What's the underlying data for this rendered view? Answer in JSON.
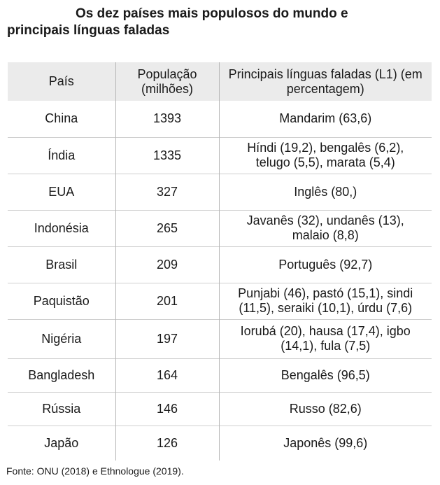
{
  "title": {
    "line1": "Os dez países mais populosos do mundo e",
    "line2": "principais línguas faladas"
  },
  "table": {
    "headers": {
      "country": "País",
      "population": "População (milhões)",
      "languages": "Principais línguas faladas (L1) (em percentagem)"
    },
    "rows": [
      {
        "country": "China",
        "population": "1393",
        "languages": "Mandarim (63,6)"
      },
      {
        "country": "Índia",
        "population": "1335",
        "languages": "Híndi (19,2), bengalês (6,2), telugo (5,5), marata (5,4)"
      },
      {
        "country": "EUA",
        "population": "327",
        "languages": "Inglês (80,)"
      },
      {
        "country": "Indonésia",
        "population": "265",
        "languages": "Javanês (32), undanês (13), malaio (8,8)"
      },
      {
        "country": "Brasil",
        "population": "209",
        "languages": "Português (92,7)"
      },
      {
        "country": "Paquistão",
        "population": "201",
        "languages": "Punjabi (46), pastó (15,1), sindi (11,5), seraiki (10,1), úrdu (7,6)"
      },
      {
        "country": "Nigéria",
        "population": "197",
        "languages": "Iorubá (20), hausa (17,4), igbo (14,1), fula (7,5)"
      },
      {
        "country": "Bangladesh",
        "population": "164",
        "languages": "Bengalês (96,5)"
      },
      {
        "country": "Rússia",
        "population": "146",
        "languages": "Russo (82,6)"
      },
      {
        "country": "Japão",
        "population": "126",
        "languages": "Japonês (99,6)"
      }
    ]
  },
  "source": "Fonte: ONU (2018) e Ethnologue (2019)."
}
